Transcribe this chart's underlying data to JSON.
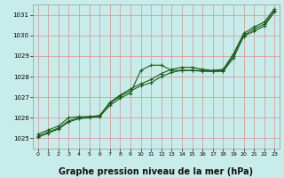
{
  "bg_color": "#c8ece9",
  "grid_color": "#d4a0a0",
  "line_color": "#1a5c1a",
  "xlabel": "Graphe pression niveau de la mer (hPa)",
  "xlabel_fontsize": 7,
  "ylim": [
    1024.5,
    1031.5
  ],
  "xlim": [
    -0.5,
    23.5
  ],
  "yticks": [
    1025,
    1026,
    1027,
    1028,
    1029,
    1030,
    1031
  ],
  "xticks": [
    0,
    1,
    2,
    3,
    4,
    5,
    6,
    7,
    8,
    9,
    10,
    11,
    12,
    13,
    14,
    15,
    16,
    17,
    18,
    19,
    20,
    21,
    22,
    23
  ],
  "line1_x": [
    0,
    1,
    2,
    3,
    4,
    5,
    6,
    7,
    8,
    9,
    10,
    11,
    12,
    13,
    14,
    15,
    16,
    17,
    18,
    19,
    20,
    21,
    22,
    23
  ],
  "line1_y": [
    1025.1,
    1025.3,
    1025.5,
    1025.85,
    1026.0,
    1026.05,
    1026.1,
    1026.7,
    1027.05,
    1027.3,
    1027.55,
    1027.7,
    1028.0,
    1028.2,
    1028.3,
    1028.3,
    1028.3,
    1028.25,
    1028.3,
    1029.0,
    1030.0,
    1030.3,
    1030.55,
    1031.2
  ],
  "line2_x": [
    0,
    1,
    2,
    3,
    4,
    5,
    6,
    7,
    8,
    9,
    10,
    11,
    12,
    13,
    14,
    15,
    16,
    17,
    18,
    19,
    20,
    21,
    22,
    23
  ],
  "line2_y": [
    1025.05,
    1025.25,
    1025.45,
    1025.8,
    1025.95,
    1026.0,
    1026.05,
    1026.6,
    1026.95,
    1027.2,
    1028.3,
    1028.55,
    1028.55,
    1028.3,
    1028.3,
    1028.3,
    1028.25,
    1028.25,
    1028.25,
    1028.9,
    1029.95,
    1030.2,
    1030.45,
    1031.15
  ],
  "line3_x": [
    0,
    1,
    2,
    3,
    4,
    5,
    6,
    7,
    8,
    9,
    10,
    11,
    12,
    13,
    14,
    15,
    16,
    17,
    18,
    19,
    20,
    21,
    22,
    23
  ],
  "line3_y": [
    1025.2,
    1025.4,
    1025.6,
    1026.0,
    1026.05,
    1026.05,
    1026.1,
    1026.75,
    1027.1,
    1027.4,
    1027.65,
    1027.85,
    1028.15,
    1028.35,
    1028.45,
    1028.45,
    1028.35,
    1028.3,
    1028.35,
    1029.1,
    1030.1,
    1030.4,
    1030.65,
    1031.3
  ]
}
